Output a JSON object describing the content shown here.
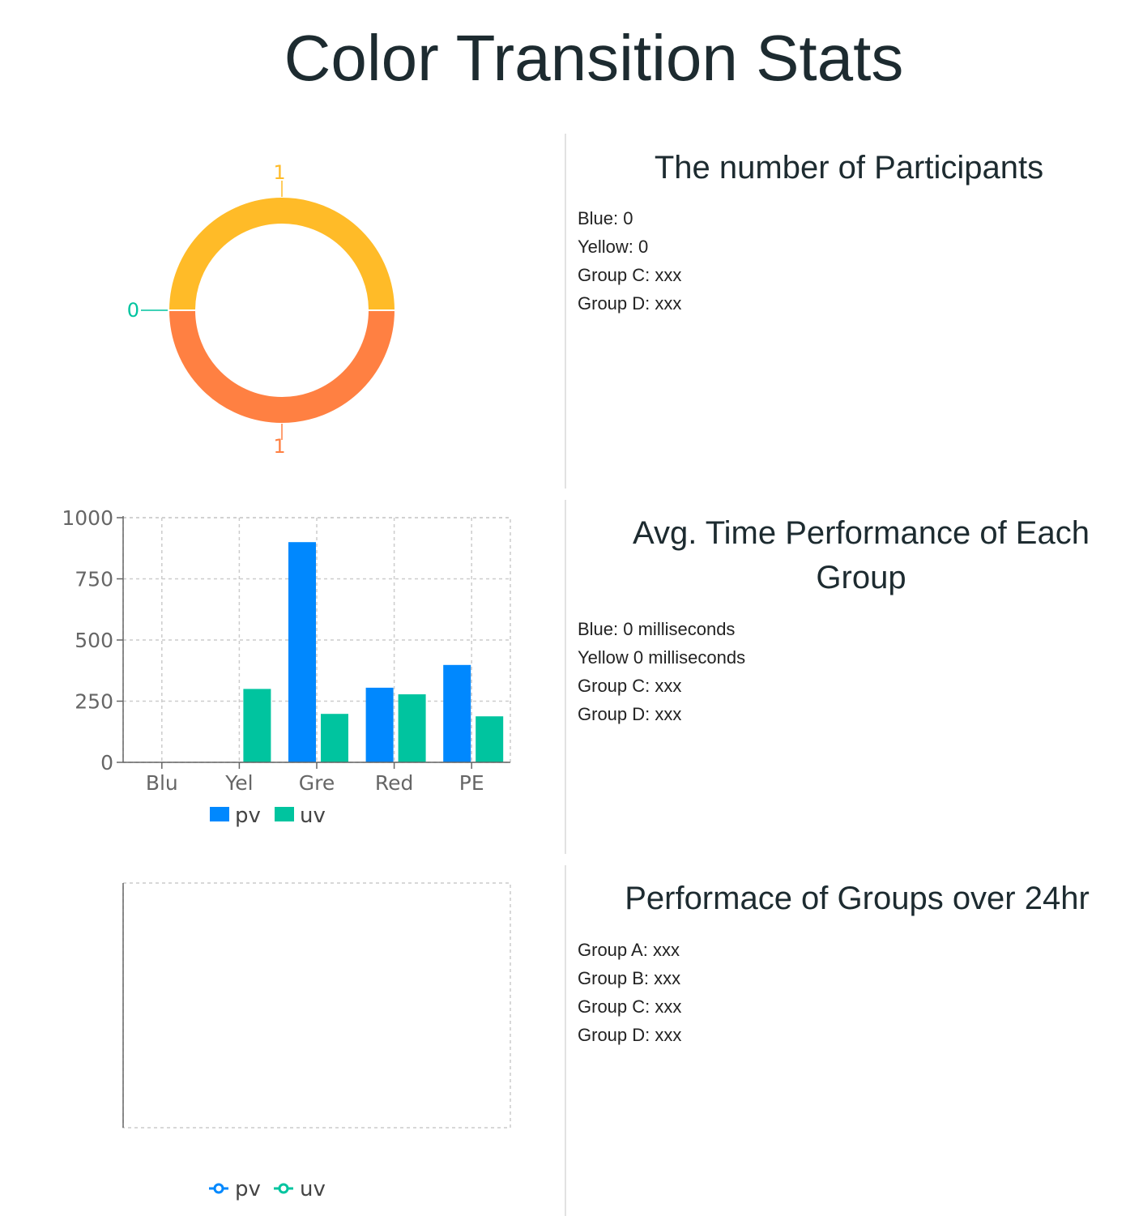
{
  "page": {
    "title": "Color Transition Stats"
  },
  "sections": [
    {
      "title": "The number of Participants",
      "items": [
        "Blue: 0",
        "Yellow: 0",
        "Group C: xxx",
        "Group D: xxx"
      ]
    },
    {
      "title": "Avg. Time Performance of Each Group",
      "items": [
        "Blue: 0 milliseconds",
        "Yellow 0 milliseconds",
        "Group C: xxx",
        "Group D: xxx"
      ]
    },
    {
      "title": "Performace of Groups over 24hr",
      "items": [
        "Group A: xxx",
        "Group B: xxx",
        "Group C: xxx",
        "Group D: xxx"
      ]
    }
  ],
  "colors": {
    "pv": "#0088fe",
    "uv": "#00c49f",
    "yellow": "#ffbb28",
    "orange": "#ff8042"
  },
  "chart_data": [
    {
      "type": "pie",
      "title": "",
      "slices": [
        {
          "value": 1,
          "label": "1",
          "color": "#ffbb28"
        },
        {
          "value": 0,
          "label": "0",
          "color": "#00c49f"
        },
        {
          "value": 1,
          "label": "1",
          "color": "#ff8042"
        }
      ]
    },
    {
      "type": "bar",
      "title": "",
      "categories": [
        "Blu",
        "Yel",
        "Gre",
        "Red",
        "PE"
      ],
      "series": [
        {
          "name": "pv",
          "values": [
            0,
            0,
            900,
            305,
            398
          ]
        },
        {
          "name": "uv",
          "values": [
            0,
            300,
            198,
            278,
            188
          ]
        }
      ],
      "ylim": [
        0,
        1000
      ],
      "yticks": [
        "0",
        "250",
        "500",
        "750",
        "1000"
      ],
      "grid": true,
      "legend": "bottom"
    },
    {
      "type": "line",
      "title": "",
      "series": [
        {
          "name": "pv",
          "values": []
        },
        {
          "name": "uv",
          "values": []
        }
      ],
      "grid": true,
      "legend": "bottom"
    }
  ]
}
